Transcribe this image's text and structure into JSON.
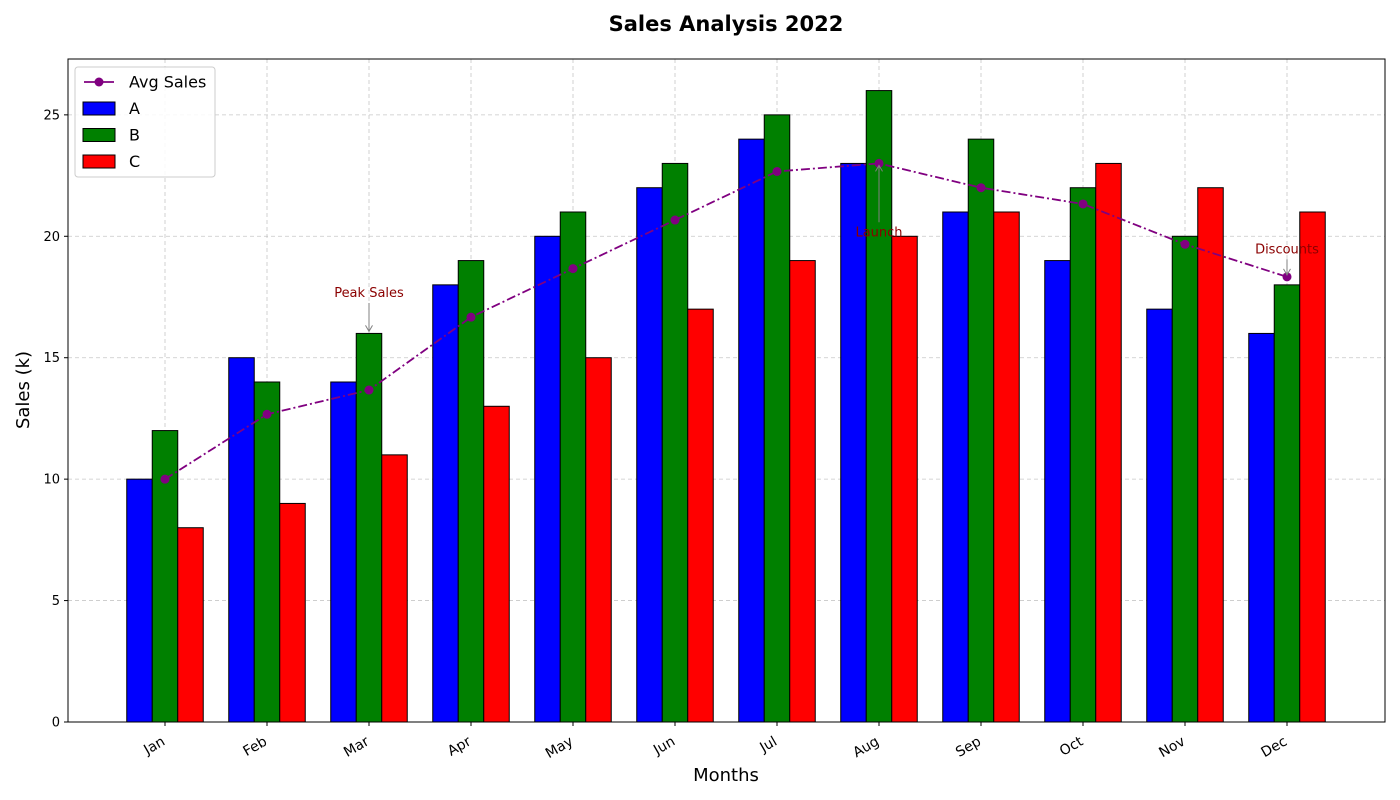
{
  "chart_data": {
    "type": "bar",
    "title": "Sales Analysis 2022",
    "xlabel": "Months",
    "ylabel": "Sales (k)",
    "ylim": [
      0,
      27.3
    ],
    "yticks": [
      0,
      5,
      10,
      15,
      20,
      25
    ],
    "grid": true,
    "legend_position": "top-left",
    "categories": [
      "Jan",
      "Feb",
      "Mar",
      "Apr",
      "May",
      "Jun",
      "Jul",
      "Aug",
      "Sep",
      "Oct",
      "Nov",
      "Dec"
    ],
    "series": [
      {
        "name": "A",
        "type": "bar",
        "color": "#0000ff",
        "values": [
          10,
          15,
          14,
          18,
          20,
          22,
          24,
          23,
          21,
          19,
          17,
          16
        ]
      },
      {
        "name": "B",
        "type": "bar",
        "color": "#008000",
        "values": [
          12,
          14,
          16,
          19,
          21,
          23,
          25,
          26,
          24,
          22,
          20,
          18
        ]
      },
      {
        "name": "C",
        "type": "bar",
        "color": "#ff0000",
        "values": [
          8,
          9,
          11,
          13,
          15,
          17,
          19,
          20,
          21,
          23,
          22,
          21
        ]
      },
      {
        "name": "Avg Sales",
        "type": "line",
        "color": "#800080",
        "values": [
          10,
          12.67,
          13.67,
          16.67,
          18.67,
          20.67,
          22.67,
          23,
          22,
          21.33,
          19.67,
          18.33
        ]
      }
    ],
    "annotations": [
      {
        "text": "Peak Sales",
        "category": "Mar",
        "target": 16,
        "text_y": 17.5,
        "color": "#8b0000"
      },
      {
        "text": "Launch",
        "category": "Aug",
        "target": 23,
        "text_y": 20,
        "color": "#8b0000"
      },
      {
        "text": "Discounts",
        "category": "Dec",
        "target": 18.33,
        "text_y": 19.3,
        "color": "#8b0000"
      }
    ]
  }
}
